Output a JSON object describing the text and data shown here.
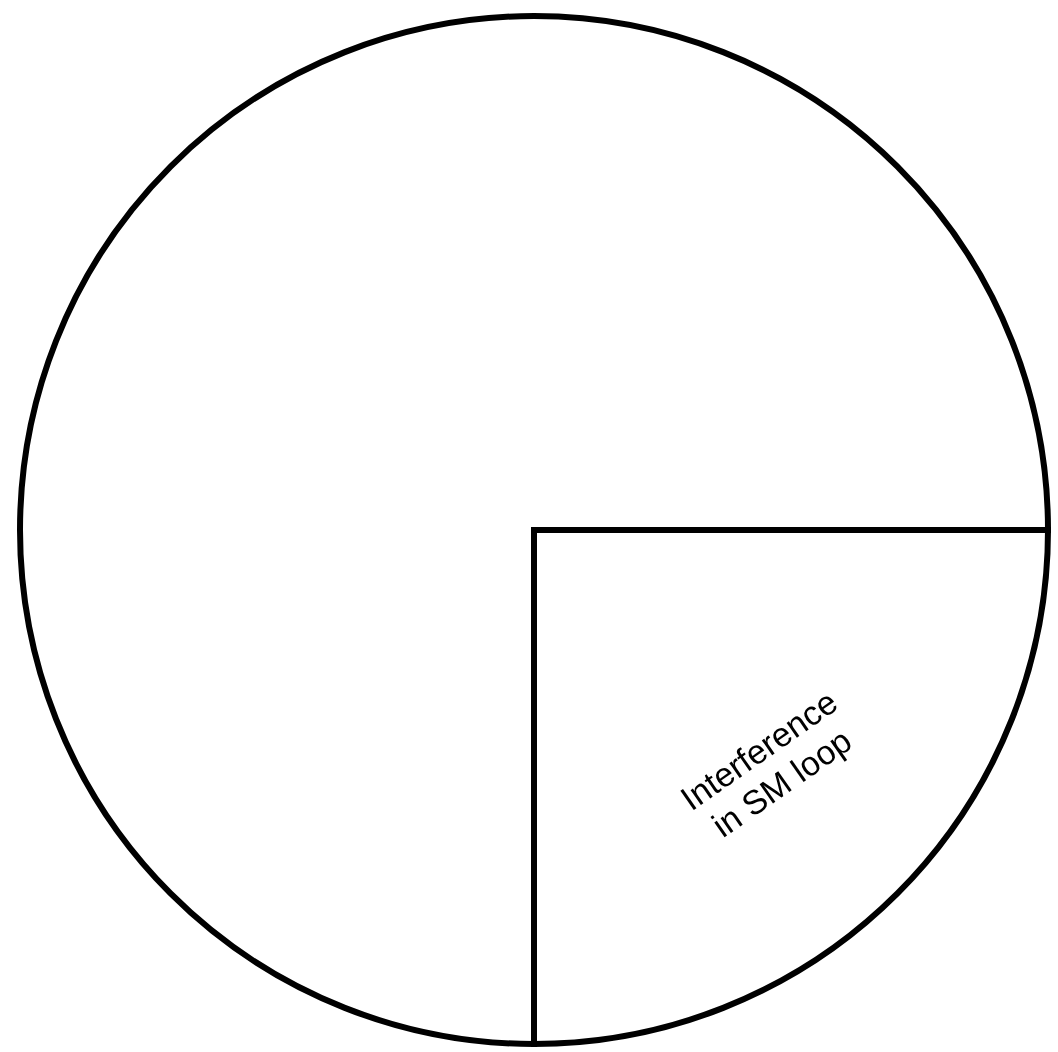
{
  "chart_data": {
    "type": "pie",
    "categories": [
      "Interference in SM loop",
      null
    ],
    "values": [
      25,
      75
    ],
    "colors": [
      "#ffffff",
      "#ffffff"
    ]
  }
}
